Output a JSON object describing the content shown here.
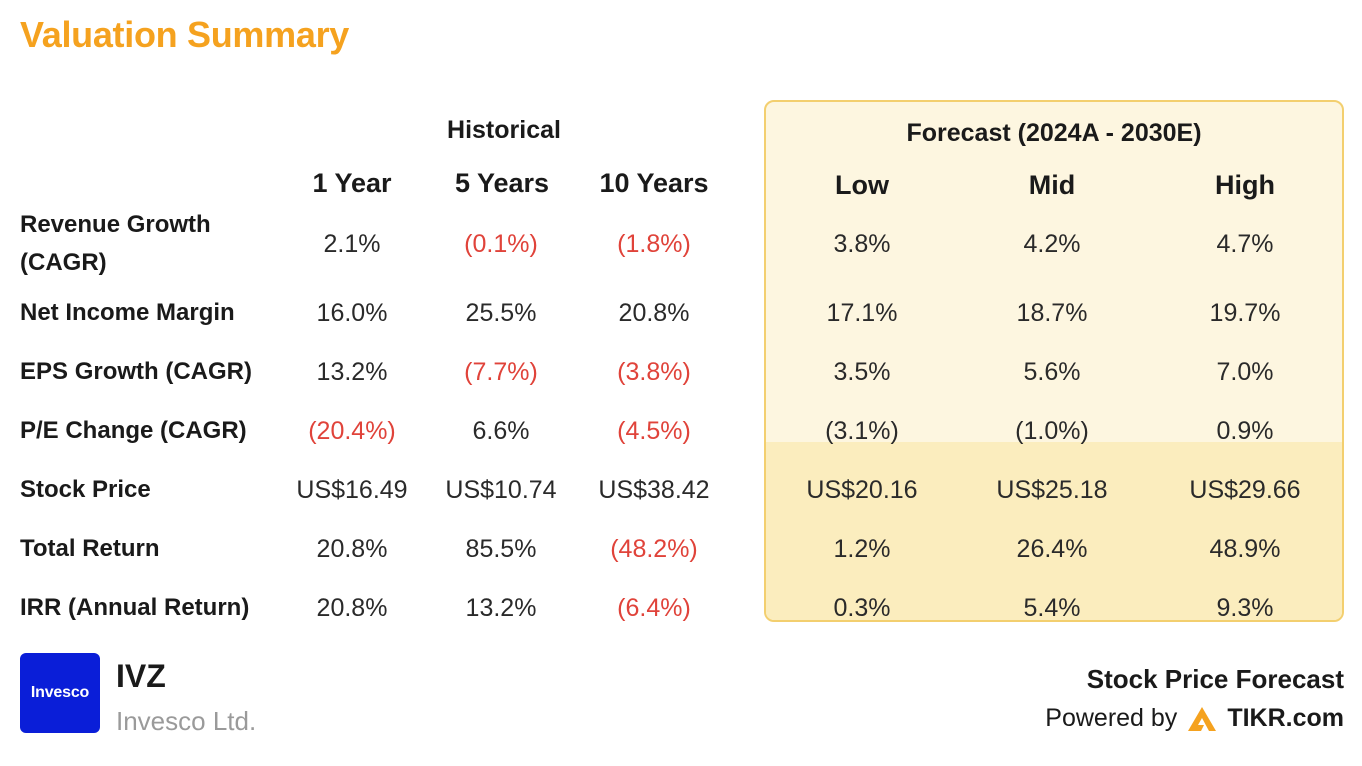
{
  "title": "Valuation Summary",
  "historical": {
    "header": "Historical",
    "columns": [
      "1 Year",
      "5 Years",
      "10 Years"
    ]
  },
  "forecast": {
    "header": "Forecast (2024A - 2030E)",
    "columns": [
      "Low",
      "Mid",
      "High"
    ]
  },
  "rows": [
    {
      "label_line1": "Revenue Growth",
      "label_line2": "(CAGR)",
      "hist": [
        "2.1%",
        "(0.1%)",
        "(1.8%)"
      ],
      "fc": [
        "3.8%",
        "4.2%",
        "4.7%"
      ]
    },
    {
      "label": "Net Income Margin",
      "hist": [
        "16.0%",
        "25.5%",
        "20.8%"
      ],
      "fc": [
        "17.1%",
        "18.7%",
        "19.7%"
      ]
    },
    {
      "label": "EPS Growth (CAGR)",
      "hist": [
        "13.2%",
        "(7.7%)",
        "(3.8%)"
      ],
      "fc": [
        "3.5%",
        "5.6%",
        "7.0%"
      ]
    },
    {
      "label": "P/E Change (CAGR)",
      "hist": [
        "(20.4%)",
        "6.6%",
        "(4.5%)"
      ],
      "fc": [
        "(3.1%)",
        "(1.0%)",
        "0.9%"
      ]
    },
    {
      "label": "Stock Price",
      "hist": [
        "US$16.49",
        "US$10.74",
        "US$38.42"
      ],
      "fc": [
        "US$20.16",
        "US$25.18",
        "US$29.66"
      ]
    },
    {
      "label": "Total Return",
      "hist": [
        "20.8%",
        "85.5%",
        "(48.2%)"
      ],
      "fc": [
        "1.2%",
        "26.4%",
        "48.9%"
      ]
    },
    {
      "label": "IRR (Annual Return)",
      "hist": [
        "20.8%",
        "13.2%",
        "(6.4%)"
      ],
      "fc": [
        "0.3%",
        "5.4%",
        "9.3%"
      ]
    }
  ],
  "colors": {
    "title": "#f5a21f",
    "negative": "#e0433a",
    "forecast_bg": "#fdf6e0",
    "forecast_bg_highlight": "#fbedbe",
    "forecast_border": "#f3cf6f",
    "logo_bg": "#0a1ed8"
  },
  "company": {
    "logo_text": "Invesco",
    "ticker": "IVZ",
    "name": "Invesco Ltd."
  },
  "footer": {
    "forecast_label": "Stock Price Forecast",
    "powered_by": "Powered by",
    "brand": "TIKR.com",
    "brand_icon": "tikr-logo-icon"
  }
}
